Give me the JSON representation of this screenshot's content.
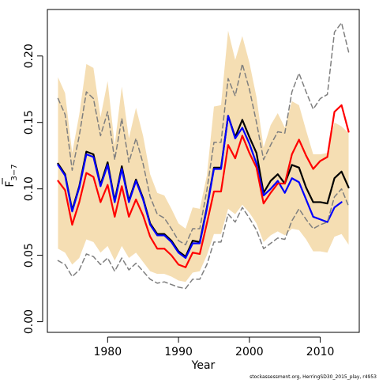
{
  "chart_data": {
    "type": "line",
    "xlabel": "Year",
    "ylabel_base": "F",
    "ylabel_sub": "3−7",
    "xlim": [
      1971.5,
      2015.5
    ],
    "ylim": [
      -0.008,
      0.235
    ],
    "x_ticks": [
      1980,
      1990,
      2000,
      2010
    ],
    "y_ticks": [
      0.0,
      0.05,
      0.1,
      0.15,
      0.2
    ],
    "y_tick_labels": [
      "0.00",
      "0.05",
      "0.10",
      "0.15",
      "0.20"
    ],
    "credit": "stockassessment.org, HerringSD30_2015_play, r4953",
    "grid": false,
    "legend": "none",
    "years": [
      1973,
      1974,
      1975,
      1976,
      1977,
      1978,
      1979,
      1980,
      1981,
      1982,
      1983,
      1984,
      1985,
      1986,
      1987,
      1988,
      1989,
      1990,
      1991,
      1992,
      1993,
      1994,
      1995,
      1996,
      1997,
      1998,
      1999,
      2000,
      2001,
      2002,
      2003,
      2004,
      2005,
      2006,
      2007,
      2008,
      2009,
      2010,
      2011,
      2012,
      2013,
      2014
    ],
    "band": {
      "color": "#F5DEB3",
      "upper": [
        0.184,
        0.172,
        0.127,
        0.156,
        0.194,
        0.191,
        0.154,
        0.181,
        0.133,
        0.177,
        0.138,
        0.161,
        0.14,
        0.111,
        0.097,
        0.095,
        0.085,
        0.074,
        0.07,
        0.086,
        0.085,
        0.11,
        0.162,
        0.163,
        0.219,
        0.197,
        0.215,
        0.195,
        0.169,
        0.131,
        0.148,
        0.157,
        0.146,
        0.166,
        0.163,
        0.144,
        0.126,
        0.126,
        0.127,
        0.15,
        0.147,
        0.142
      ],
      "lower": [
        0.055,
        0.052,
        0.043,
        0.048,
        0.062,
        0.06,
        0.052,
        0.057,
        0.046,
        0.057,
        0.048,
        0.052,
        0.045,
        0.038,
        0.036,
        0.036,
        0.034,
        0.031,
        0.03,
        0.037,
        0.038,
        0.05,
        0.066,
        0.066,
        0.085,
        0.081,
        0.088,
        0.082,
        0.074,
        0.06,
        0.065,
        0.068,
        0.065,
        0.07,
        0.069,
        0.062,
        0.053,
        0.053,
        0.052,
        0.064,
        0.066,
        0.058
      ]
    },
    "series": [
      {
        "color": "#000000",
        "width": 2.2,
        "dash": "",
        "values": [
          0.119,
          0.111,
          0.084,
          0.102,
          0.128,
          0.126,
          0.103,
          0.12,
          0.091,
          0.117,
          0.091,
          0.107,
          0.093,
          0.074,
          0.066,
          0.066,
          0.061,
          0.053,
          0.049,
          0.061,
          0.06,
          0.086,
          0.116,
          0.116,
          0.155,
          0.139,
          0.152,
          0.139,
          0.127,
          0.097,
          0.106,
          0.111,
          0.104,
          0.118,
          0.116,
          0.101,
          0.09,
          0.09,
          0.089,
          0.108,
          0.113,
          0.101
        ]
      },
      {
        "color": "#0000ff",
        "width": 2.2,
        "dash": "",
        "values": [
          0.118,
          0.11,
          0.083,
          0.101,
          0.126,
          0.124,
          0.102,
          0.118,
          0.09,
          0.115,
          0.09,
          0.106,
          0.092,
          0.073,
          0.065,
          0.065,
          0.06,
          0.052,
          0.048,
          0.059,
          0.059,
          0.085,
          0.115,
          0.115,
          0.155,
          0.138,
          0.146,
          0.134,
          0.119,
          0.095,
          0.1,
          0.106,
          0.097,
          0.108,
          0.105,
          0.092,
          0.079,
          0.077,
          0.075,
          0.086,
          0.09,
          null
        ]
      },
      {
        "color": "#ff0000",
        "width": 2.2,
        "dash": "",
        "values": [
          0.106,
          0.099,
          0.073,
          0.09,
          0.112,
          0.109,
          0.09,
          0.103,
          0.079,
          0.102,
          0.079,
          0.092,
          0.08,
          0.064,
          0.055,
          0.055,
          0.05,
          0.043,
          0.041,
          0.052,
          0.051,
          0.074,
          0.098,
          0.098,
          0.133,
          0.123,
          0.14,
          0.127,
          0.116,
          0.089,
          0.097,
          0.104,
          0.104,
          0.126,
          0.137,
          0.125,
          0.115,
          0.121,
          0.124,
          0.158,
          0.163,
          0.143
        ]
      },
      {
        "color": "#7f7f7f",
        "width": 1.5,
        "dash": "6,4",
        "values": [
          0.168,
          0.156,
          0.114,
          0.14,
          0.173,
          0.168,
          0.14,
          0.158,
          0.122,
          0.153,
          0.12,
          0.138,
          0.119,
          0.094,
          0.081,
          0.078,
          0.07,
          0.061,
          0.058,
          0.07,
          0.07,
          0.099,
          0.135,
          0.135,
          0.183,
          0.17,
          0.194,
          0.175,
          0.15,
          0.122,
          0.133,
          0.143,
          0.142,
          0.173,
          0.187,
          0.173,
          0.16,
          0.168,
          0.171,
          0.218,
          0.225,
          0.203
        ]
      },
      {
        "color": "#7f7f7f",
        "width": 1.5,
        "dash": "6,4",
        "values": [
          0.046,
          0.043,
          0.034,
          0.039,
          0.051,
          0.049,
          0.043,
          0.048,
          0.038,
          0.048,
          0.039,
          0.044,
          0.038,
          0.032,
          0.029,
          0.03,
          0.028,
          0.026,
          0.025,
          0.032,
          0.032,
          0.043,
          0.06,
          0.06,
          0.081,
          0.075,
          0.086,
          0.078,
          0.069,
          0.055,
          0.059,
          0.063,
          0.062,
          0.076,
          0.085,
          0.077,
          0.07,
          0.073,
          0.075,
          0.094,
          0.1,
          0.087
        ]
      }
    ]
  }
}
